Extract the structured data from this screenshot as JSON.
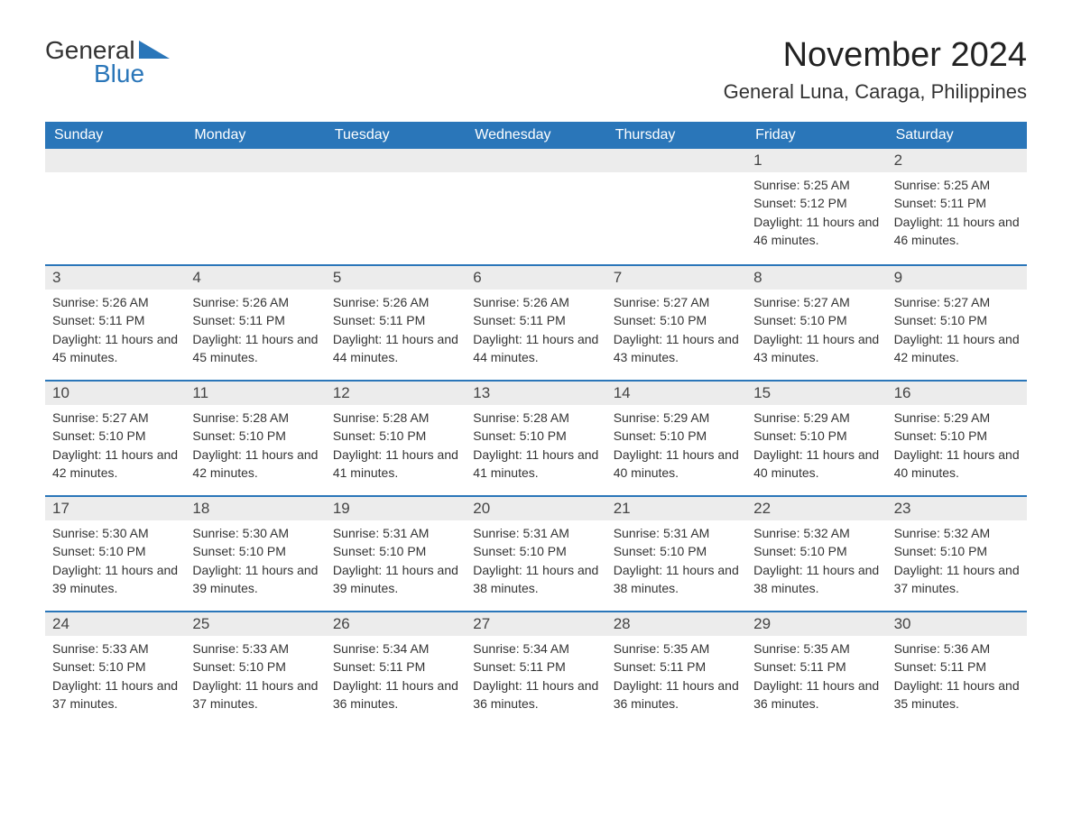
{
  "brand": {
    "general": "General",
    "blue": "Blue",
    "accent_color": "#2a76b9"
  },
  "title": "November 2024",
  "location": "General Luna, Caraga, Philippines",
  "colors": {
    "header_bg": "#2a76b9",
    "header_text": "#ffffff",
    "daynum_bg": "#ececec",
    "row_border": "#2a76b9",
    "body_text": "#333333",
    "page_bg": "#ffffff"
  },
  "weekdays": [
    "Sunday",
    "Monday",
    "Tuesday",
    "Wednesday",
    "Thursday",
    "Friday",
    "Saturday"
  ],
  "weeks": [
    [
      null,
      null,
      null,
      null,
      null,
      {
        "n": "1",
        "sunrise": "Sunrise: 5:25 AM",
        "sunset": "Sunset: 5:12 PM",
        "daylight": "Daylight: 11 hours and 46 minutes."
      },
      {
        "n": "2",
        "sunrise": "Sunrise: 5:25 AM",
        "sunset": "Sunset: 5:11 PM",
        "daylight": "Daylight: 11 hours and 46 minutes."
      }
    ],
    [
      {
        "n": "3",
        "sunrise": "Sunrise: 5:26 AM",
        "sunset": "Sunset: 5:11 PM",
        "daylight": "Daylight: 11 hours and 45 minutes."
      },
      {
        "n": "4",
        "sunrise": "Sunrise: 5:26 AM",
        "sunset": "Sunset: 5:11 PM",
        "daylight": "Daylight: 11 hours and 45 minutes."
      },
      {
        "n": "5",
        "sunrise": "Sunrise: 5:26 AM",
        "sunset": "Sunset: 5:11 PM",
        "daylight": "Daylight: 11 hours and 44 minutes."
      },
      {
        "n": "6",
        "sunrise": "Sunrise: 5:26 AM",
        "sunset": "Sunset: 5:11 PM",
        "daylight": "Daylight: 11 hours and 44 minutes."
      },
      {
        "n": "7",
        "sunrise": "Sunrise: 5:27 AM",
        "sunset": "Sunset: 5:10 PM",
        "daylight": "Daylight: 11 hours and 43 minutes."
      },
      {
        "n": "8",
        "sunrise": "Sunrise: 5:27 AM",
        "sunset": "Sunset: 5:10 PM",
        "daylight": "Daylight: 11 hours and 43 minutes."
      },
      {
        "n": "9",
        "sunrise": "Sunrise: 5:27 AM",
        "sunset": "Sunset: 5:10 PM",
        "daylight": "Daylight: 11 hours and 42 minutes."
      }
    ],
    [
      {
        "n": "10",
        "sunrise": "Sunrise: 5:27 AM",
        "sunset": "Sunset: 5:10 PM",
        "daylight": "Daylight: 11 hours and 42 minutes."
      },
      {
        "n": "11",
        "sunrise": "Sunrise: 5:28 AM",
        "sunset": "Sunset: 5:10 PM",
        "daylight": "Daylight: 11 hours and 42 minutes."
      },
      {
        "n": "12",
        "sunrise": "Sunrise: 5:28 AM",
        "sunset": "Sunset: 5:10 PM",
        "daylight": "Daylight: 11 hours and 41 minutes."
      },
      {
        "n": "13",
        "sunrise": "Sunrise: 5:28 AM",
        "sunset": "Sunset: 5:10 PM",
        "daylight": "Daylight: 11 hours and 41 minutes."
      },
      {
        "n": "14",
        "sunrise": "Sunrise: 5:29 AM",
        "sunset": "Sunset: 5:10 PM",
        "daylight": "Daylight: 11 hours and 40 minutes."
      },
      {
        "n": "15",
        "sunrise": "Sunrise: 5:29 AM",
        "sunset": "Sunset: 5:10 PM",
        "daylight": "Daylight: 11 hours and 40 minutes."
      },
      {
        "n": "16",
        "sunrise": "Sunrise: 5:29 AM",
        "sunset": "Sunset: 5:10 PM",
        "daylight": "Daylight: 11 hours and 40 minutes."
      }
    ],
    [
      {
        "n": "17",
        "sunrise": "Sunrise: 5:30 AM",
        "sunset": "Sunset: 5:10 PM",
        "daylight": "Daylight: 11 hours and 39 minutes."
      },
      {
        "n": "18",
        "sunrise": "Sunrise: 5:30 AM",
        "sunset": "Sunset: 5:10 PM",
        "daylight": "Daylight: 11 hours and 39 minutes."
      },
      {
        "n": "19",
        "sunrise": "Sunrise: 5:31 AM",
        "sunset": "Sunset: 5:10 PM",
        "daylight": "Daylight: 11 hours and 39 minutes."
      },
      {
        "n": "20",
        "sunrise": "Sunrise: 5:31 AM",
        "sunset": "Sunset: 5:10 PM",
        "daylight": "Daylight: 11 hours and 38 minutes."
      },
      {
        "n": "21",
        "sunrise": "Sunrise: 5:31 AM",
        "sunset": "Sunset: 5:10 PM",
        "daylight": "Daylight: 11 hours and 38 minutes."
      },
      {
        "n": "22",
        "sunrise": "Sunrise: 5:32 AM",
        "sunset": "Sunset: 5:10 PM",
        "daylight": "Daylight: 11 hours and 38 minutes."
      },
      {
        "n": "23",
        "sunrise": "Sunrise: 5:32 AM",
        "sunset": "Sunset: 5:10 PM",
        "daylight": "Daylight: 11 hours and 37 minutes."
      }
    ],
    [
      {
        "n": "24",
        "sunrise": "Sunrise: 5:33 AM",
        "sunset": "Sunset: 5:10 PM",
        "daylight": "Daylight: 11 hours and 37 minutes."
      },
      {
        "n": "25",
        "sunrise": "Sunrise: 5:33 AM",
        "sunset": "Sunset: 5:10 PM",
        "daylight": "Daylight: 11 hours and 37 minutes."
      },
      {
        "n": "26",
        "sunrise": "Sunrise: 5:34 AM",
        "sunset": "Sunset: 5:11 PM",
        "daylight": "Daylight: 11 hours and 36 minutes."
      },
      {
        "n": "27",
        "sunrise": "Sunrise: 5:34 AM",
        "sunset": "Sunset: 5:11 PM",
        "daylight": "Daylight: 11 hours and 36 minutes."
      },
      {
        "n": "28",
        "sunrise": "Sunrise: 5:35 AM",
        "sunset": "Sunset: 5:11 PM",
        "daylight": "Daylight: 11 hours and 36 minutes."
      },
      {
        "n": "29",
        "sunrise": "Sunrise: 5:35 AM",
        "sunset": "Sunset: 5:11 PM",
        "daylight": "Daylight: 11 hours and 36 minutes."
      },
      {
        "n": "30",
        "sunrise": "Sunrise: 5:36 AM",
        "sunset": "Sunset: 5:11 PM",
        "daylight": "Daylight: 11 hours and 35 minutes."
      }
    ]
  ]
}
